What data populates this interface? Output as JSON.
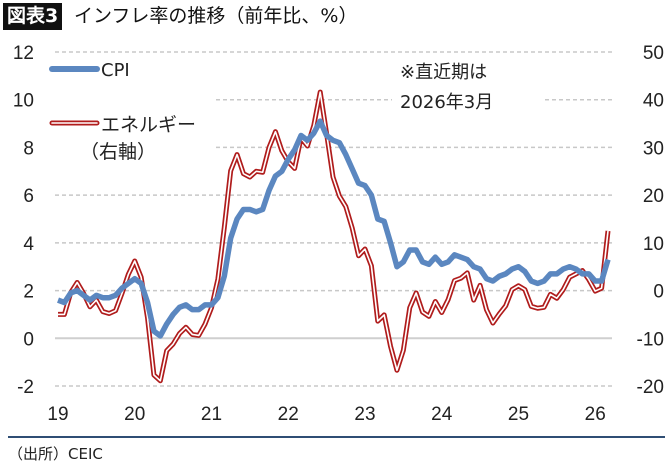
{
  "header": {
    "badge": "図表3",
    "title": "インフレ率の推移（前年比、%）"
  },
  "source": "（出所）CEIC",
  "chart_data": {
    "type": "line",
    "title": "インフレ率の推移（前年比、%）",
    "x_tick_labels": [
      "19",
      "20",
      "21",
      "22",
      "23",
      "24",
      "25",
      "26"
    ],
    "x_start": "2019-01",
    "x_end": "2026-03",
    "frequency": "monthly",
    "y_left": {
      "ticks": [
        -2,
        0,
        2,
        4,
        6,
        8,
        10,
        12
      ],
      "range": [
        -2,
        12
      ]
    },
    "y_right": {
      "ticks": [
        -20,
        -10,
        0,
        10,
        20,
        30,
        40,
        50
      ],
      "range": [
        -20,
        50
      ]
    },
    "grid": true,
    "annotation": [
      "※直近期は",
      "2026年3月"
    ],
    "legend_position": "top-left",
    "series": [
      {
        "name": "CPI",
        "axis": "left",
        "color": "#5b87c0",
        "values": [
          1.6,
          1.5,
          1.9,
          2.0,
          1.8,
          1.6,
          1.8,
          1.7,
          1.7,
          1.8,
          2.1,
          2.3,
          2.5,
          2.3,
          1.5,
          0.3,
          0.1,
          0.6,
          1.0,
          1.3,
          1.4,
          1.2,
          1.2,
          1.4,
          1.4,
          1.7,
          2.6,
          4.2,
          5.0,
          5.4,
          5.4,
          5.3,
          5.4,
          6.2,
          6.8,
          7.0,
          7.5,
          7.9,
          8.5,
          8.3,
          8.6,
          9.1,
          8.5,
          8.3,
          8.2,
          7.7,
          7.1,
          6.5,
          6.4,
          6.0,
          5.0,
          4.9,
          4.0,
          3.0,
          3.2,
          3.7,
          3.7,
          3.2,
          3.1,
          3.4,
          3.1,
          3.2,
          3.5,
          3.4,
          3.3,
          3.0,
          2.9,
          2.5,
          2.4,
          2.6,
          2.7,
          2.9,
          3.0,
          2.8,
          2.4,
          2.3,
          2.4,
          2.7,
          2.7,
          2.9,
          3.0,
          2.9,
          2.7,
          2.7,
          2.4,
          2.4,
          3.3
        ]
      },
      {
        "name": "エネルギー",
        "name_suffix": "（右軸）",
        "axis": "right",
        "color": "#b01c1c",
        "values": [
          -5.0,
          -5.0,
          -0.4,
          1.7,
          -0.6,
          -3.4,
          -2.0,
          -4.4,
          -4.8,
          -4.2,
          -0.6,
          3.4,
          6.2,
          2.8,
          -5.7,
          -17.7,
          -18.9,
          -12.6,
          -11.2,
          -9.0,
          -7.7,
          -9.2,
          -9.4,
          -7.0,
          -3.6,
          2.4,
          13.2,
          25.1,
          28.5,
          24.5,
          23.8,
          25.0,
          24.8,
          30.0,
          33.3,
          29.3,
          27.0,
          25.6,
          32.0,
          30.3,
          34.6,
          41.6,
          32.9,
          23.8,
          19.8,
          17.6,
          13.1,
          7.3,
          8.7,
          5.2,
          -6.4,
          -5.1,
          -11.7,
          -16.7,
          -12.5,
          -3.6,
          -0.5,
          -4.5,
          -5.4,
          -2.3,
          -4.6,
          -1.9,
          2.1,
          2.6,
          3.7,
          -2.0,
          1.1,
          -4.0,
          -6.8,
          -4.9,
          -3.2,
          0.2,
          1.0,
          0.2,
          -3.3,
          -3.7,
          -3.5,
          -0.8,
          -1.6,
          0.2,
          2.8,
          3.5,
          4.2,
          2.3,
          -0.1,
          0.5,
          12.5
        ]
      }
    ]
  }
}
